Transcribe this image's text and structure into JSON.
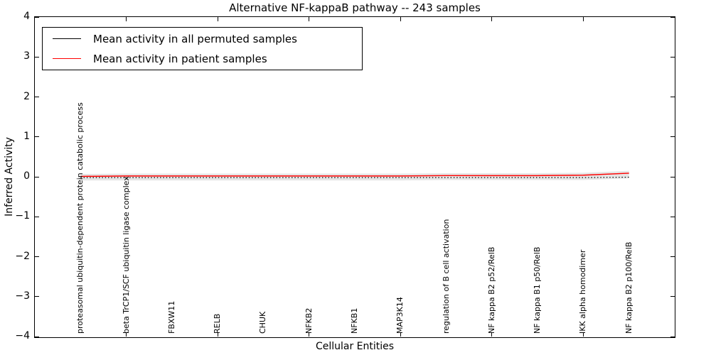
{
  "chart_data": {
    "type": "line",
    "title": "Alternative NF-kappaB pathway -- 243 samples",
    "xlabel": "Cellular Entities",
    "ylabel": "Inferred Activity",
    "categories": [
      "proteasomal ubiquitin-dependent protein catabolic process",
      "beta TrCP1/SCF ubiquitin ligase complex",
      "FBXW11",
      "RELB",
      "CHUK",
      "NFKB2",
      "NFKB1",
      "MAP3K14",
      "regulation of B cell activation",
      "NF kappa B2 p52/RelB",
      "NF kappa B1 p50/RelB",
      "IKK alpha homodimer",
      "NF kappa B2 p100/RelB"
    ],
    "series": [
      {
        "name": "Mean activity in all permuted samples",
        "color": "#000000",
        "style": "dotted",
        "values": [
          -0.02,
          -0.02,
          -0.02,
          -0.02,
          -0.02,
          -0.02,
          -0.02,
          -0.02,
          -0.02,
          -0.02,
          -0.02,
          -0.02,
          -0.01
        ]
      },
      {
        "name": "Mean activity in patient samples",
        "color": "#ff0000",
        "style": "solid",
        "values": [
          0.01,
          0.02,
          0.02,
          0.02,
          0.02,
          0.02,
          0.02,
          0.02,
          0.03,
          0.03,
          0.03,
          0.04,
          0.09
        ]
      }
    ],
    "band": {
      "upper": [
        0.07,
        0.08,
        0.08,
        0.08,
        0.08,
        0.08,
        0.08,
        0.08,
        0.09,
        0.09,
        0.09,
        0.1,
        0.15
      ],
      "lower": [
        -0.09,
        -0.09,
        -0.09,
        -0.09,
        -0.09,
        -0.09,
        -0.09,
        -0.09,
        -0.08,
        -0.08,
        -0.08,
        -0.08,
        -0.04
      ],
      "color": "#dcdcdc"
    },
    "ylim": [
      -4,
      4
    ],
    "xlim": [
      -1,
      13
    ],
    "y_ticks": [
      4,
      3,
      2,
      1,
      0,
      -1,
      -2,
      -3,
      -4
    ],
    "y_tick_labels": [
      "4",
      "3",
      "2",
      "1",
      "0",
      "−1",
      "−2",
      "−3",
      "−4"
    ],
    "x_tick_units": [
      1,
      3,
      5,
      7,
      9,
      11,
      13
    ],
    "legend_position": "upper left",
    "grid": false
  }
}
